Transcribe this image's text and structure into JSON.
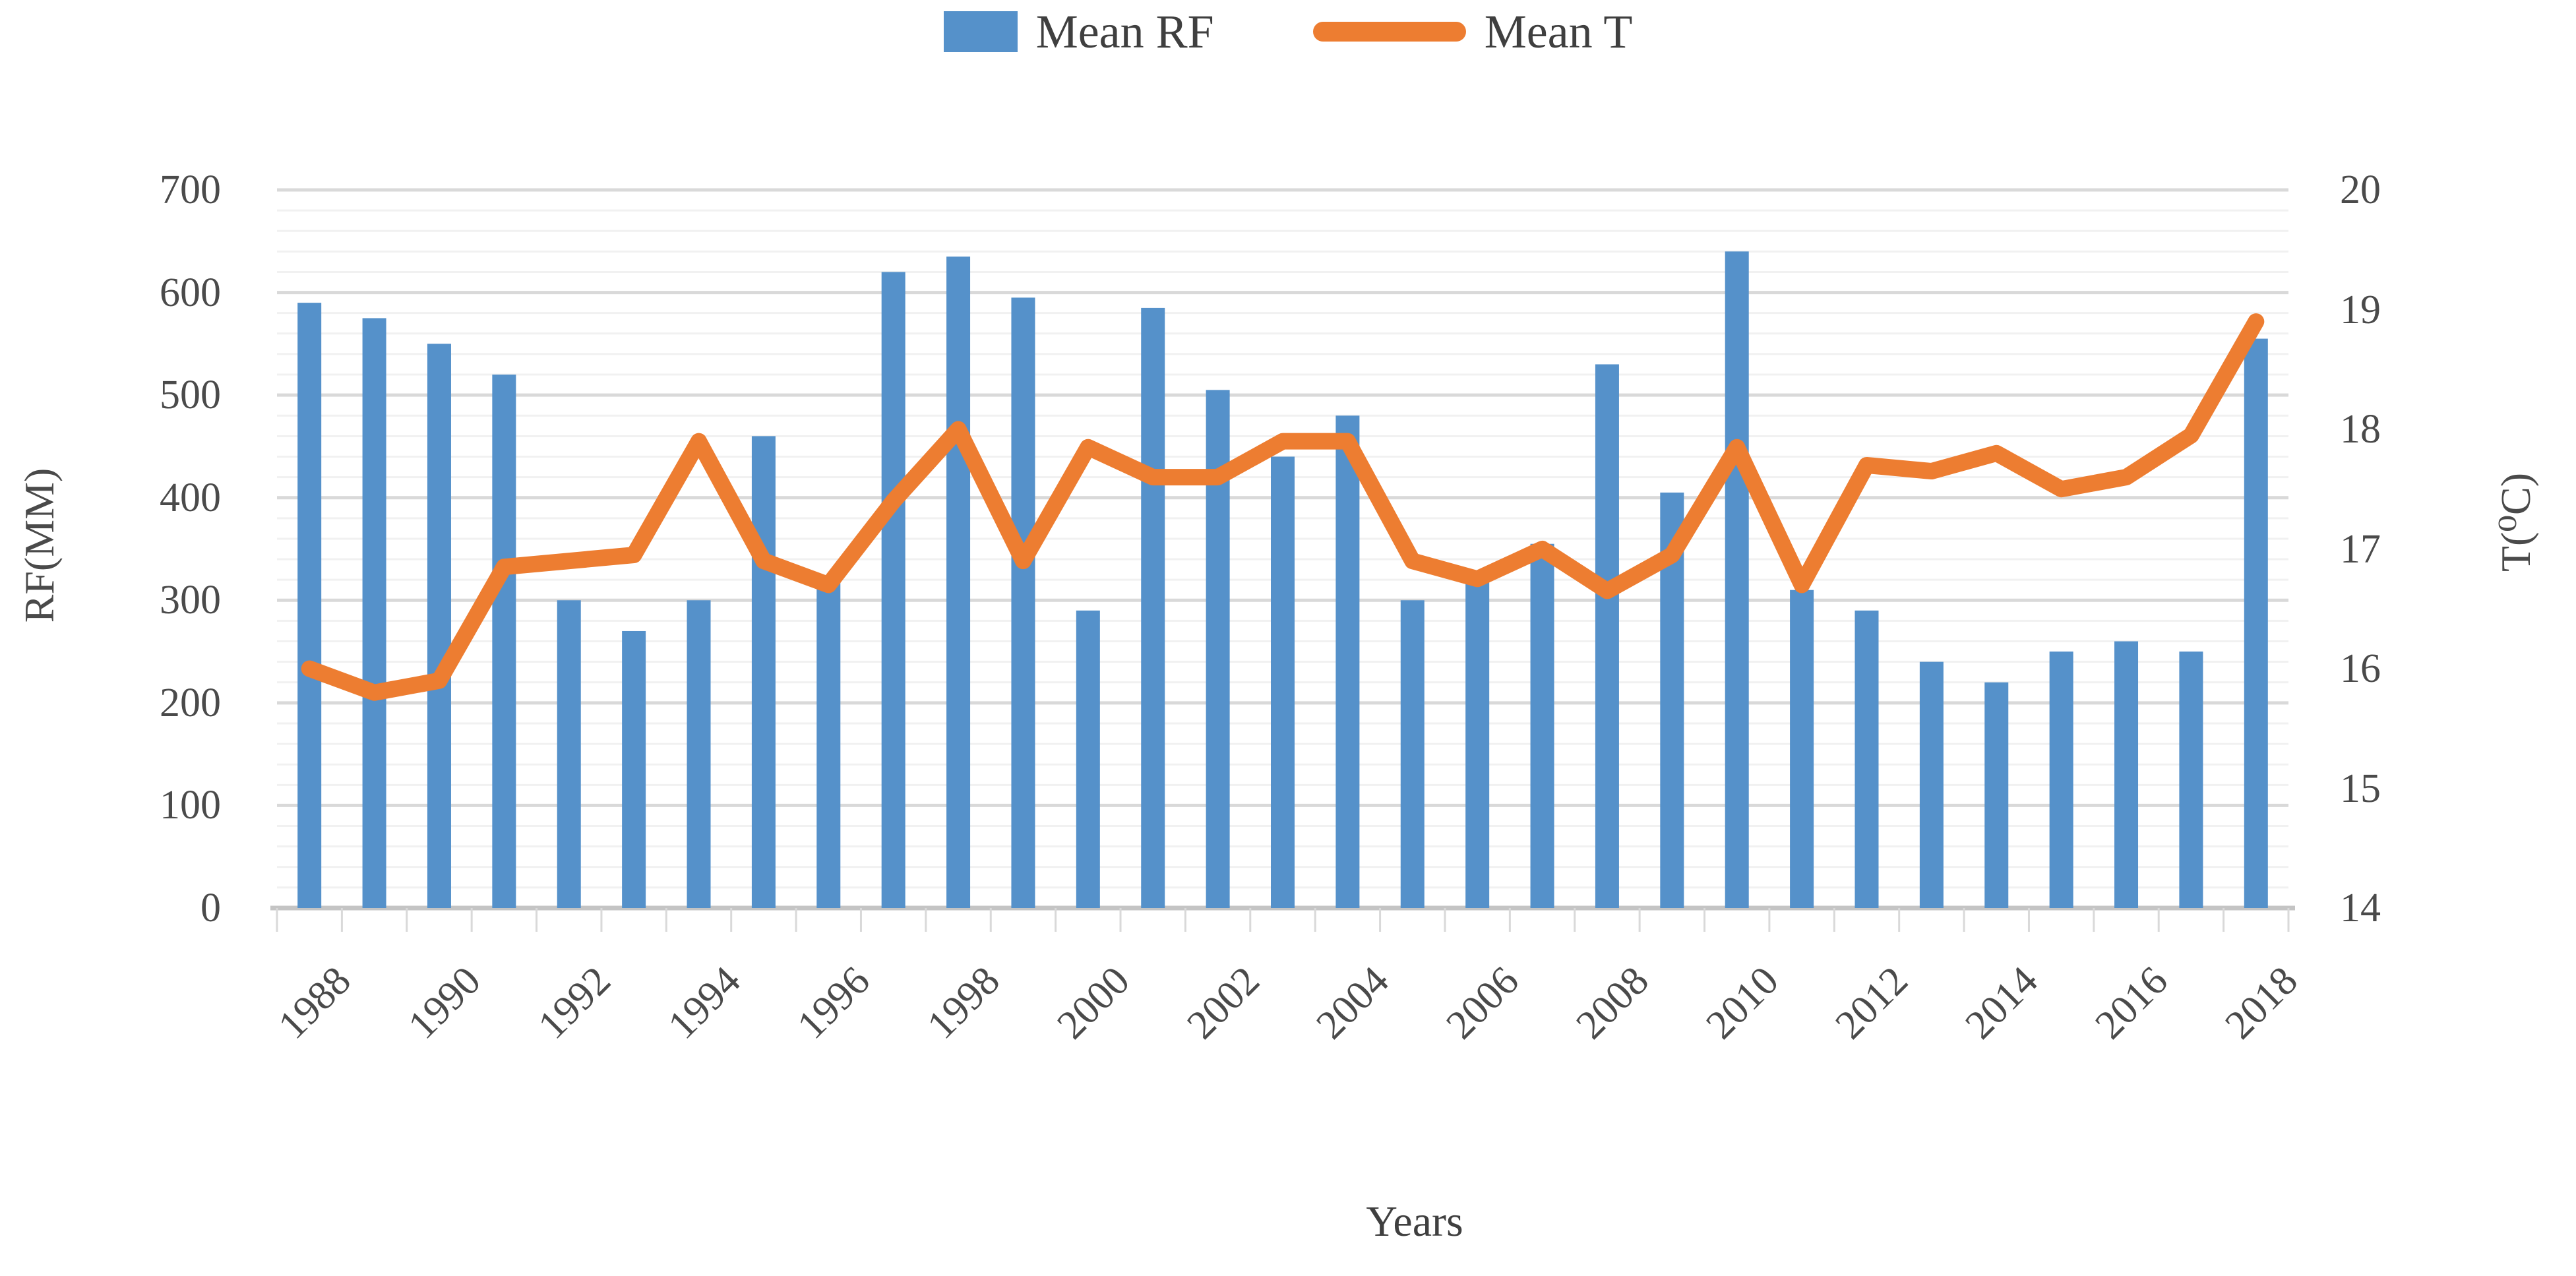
{
  "chart_data": {
    "type": "bar",
    "subtype": "combo-bar-line-dual-axis",
    "title": "",
    "categories": [
      1988,
      1989,
      1990,
      1991,
      1992,
      1993,
      1994,
      1995,
      1996,
      1997,
      1998,
      1999,
      2000,
      2001,
      2002,
      2003,
      2004,
      2005,
      2006,
      2007,
      2008,
      2009,
      2010,
      2011,
      2012,
      2013,
      2014,
      2015,
      2016,
      2017,
      2018
    ],
    "series": [
      {
        "name": "Mean RF",
        "type": "bar",
        "axis": "left",
        "color": "#5591CA",
        "values": [
          590,
          575,
          550,
          520,
          300,
          270,
          300,
          460,
          320,
          620,
          635,
          595,
          290,
          585,
          505,
          440,
          480,
          300,
          325,
          355,
          530,
          405,
          640,
          310,
          290,
          240,
          220,
          250,
          260,
          250,
          555
        ]
      },
      {
        "name": "Mean T",
        "type": "line",
        "axis": "right",
        "color": "#ED7D31",
        "values": [
          16.0,
          15.8,
          15.9,
          16.85,
          16.9,
          16.95,
          17.9,
          16.9,
          16.7,
          17.4,
          18.0,
          16.9,
          17.85,
          17.6,
          17.6,
          17.9,
          17.9,
          16.9,
          16.75,
          17.0,
          16.65,
          16.95,
          17.85,
          16.7,
          17.7,
          17.65,
          17.8,
          17.5,
          17.6,
          17.95,
          18.9
        ]
      }
    ],
    "x_axis": {
      "label": "Years",
      "tick_labels": [
        "1988",
        "1990",
        "1992",
        "1994",
        "1996",
        "1998",
        "2000",
        "2002",
        "2004",
        "2006",
        "2008",
        "2010",
        "2012",
        "2014",
        "2016",
        "2018"
      ],
      "label_every": 2
    },
    "y_left": {
      "label": "RF(MM)",
      "min": 0,
      "max": 700,
      "tick_step": 100,
      "minor_step": 20,
      "ticks": [
        "700",
        "600",
        "500",
        "400",
        "300",
        "200",
        "100",
        "0"
      ]
    },
    "y_right": {
      "label": "T(⁰C)",
      "min": 14,
      "max": 20,
      "tick_step": 1,
      "ticks": [
        "20",
        "19",
        "18",
        "17",
        "16",
        "15",
        "14"
      ]
    },
    "grid": {
      "major_color": "#D9D9D9",
      "minor_color": "#F1F1F1",
      "axis_line_color": "#C4C4C4",
      "minor_on": true
    },
    "legend_position": "top-center",
    "text_color": "#4a4a4a"
  }
}
